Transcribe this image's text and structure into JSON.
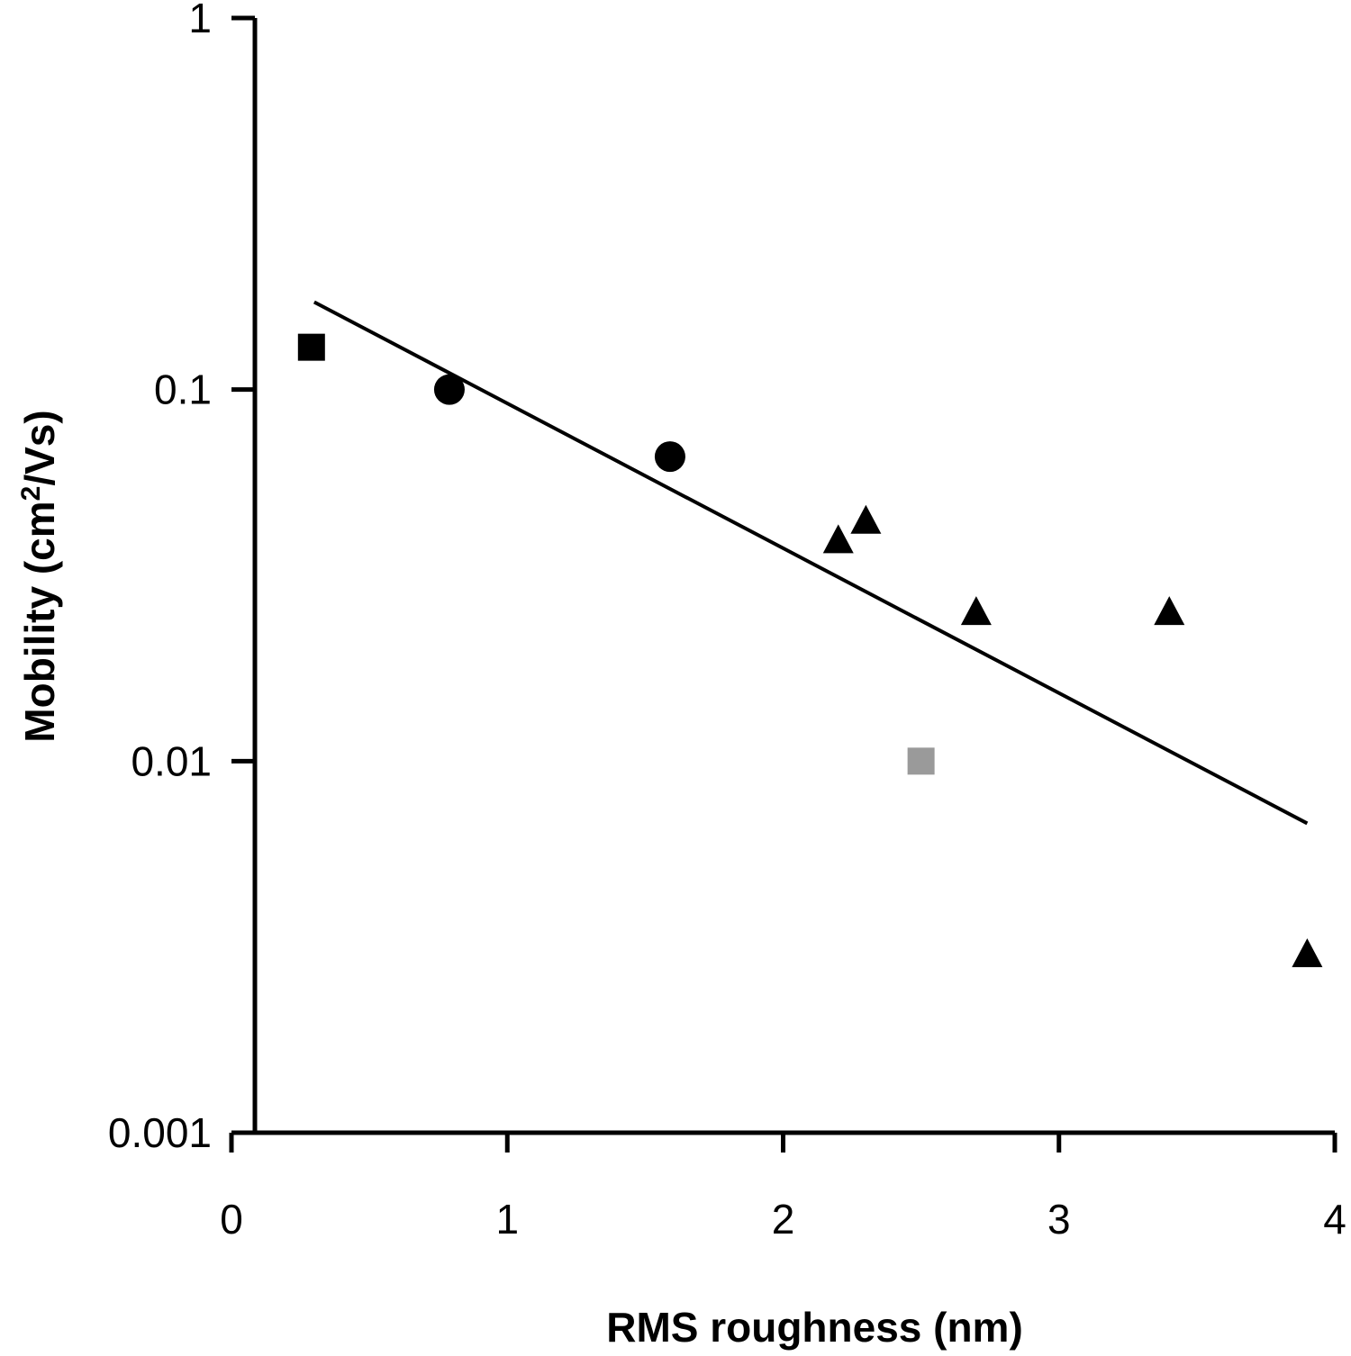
{
  "chart_data": {
    "type": "scatter",
    "xlabel": "RMS roughness (nm)",
    "ylabel": "Mobility (cm²/Vs)",
    "ylabel_parts": {
      "before": "Mobility (cm",
      "sup": "2",
      "after": "/Vs)"
    },
    "xlim": [
      0,
      4
    ],
    "ylim": [
      0.001,
      1
    ],
    "yscale": "log",
    "grid": false,
    "x_ticks": [
      {
        "value": 0,
        "label": "0"
      },
      {
        "value": 1,
        "label": "1"
      },
      {
        "value": 2,
        "label": "2"
      },
      {
        "value": 3,
        "label": "3"
      },
      {
        "value": 4,
        "label": "4"
      }
    ],
    "y_ticks": [
      {
        "value": 1,
        "label": "1"
      },
      {
        "value": 0.1,
        "label": "0.1"
      },
      {
        "value": 0.01,
        "label": "0.01"
      },
      {
        "value": 0.001,
        "label": "0.001"
      }
    ],
    "series": [
      {
        "marker": "square",
        "color": "#000000",
        "points": [
          [
            0.29,
            0.13
          ]
        ]
      },
      {
        "marker": "circle",
        "color": "#000000",
        "points": [
          [
            0.79,
            0.1
          ],
          [
            1.59,
            0.066
          ]
        ]
      },
      {
        "marker": "triangle",
        "color": "#000000",
        "points": [
          [
            2.2,
            0.039
          ],
          [
            2.3,
            0.044
          ],
          [
            2.7,
            0.025
          ],
          [
            3.4,
            0.025
          ],
          [
            3.9,
            0.003
          ]
        ]
      },
      {
        "marker": "square",
        "color": "#9a9a9a",
        "points": [
          [
            2.5,
            0.01
          ]
        ]
      }
    ],
    "trendline": {
      "color": "#000000",
      "points": [
        [
          0.3,
          0.172
        ],
        [
          3.9,
          0.0068
        ]
      ]
    }
  }
}
